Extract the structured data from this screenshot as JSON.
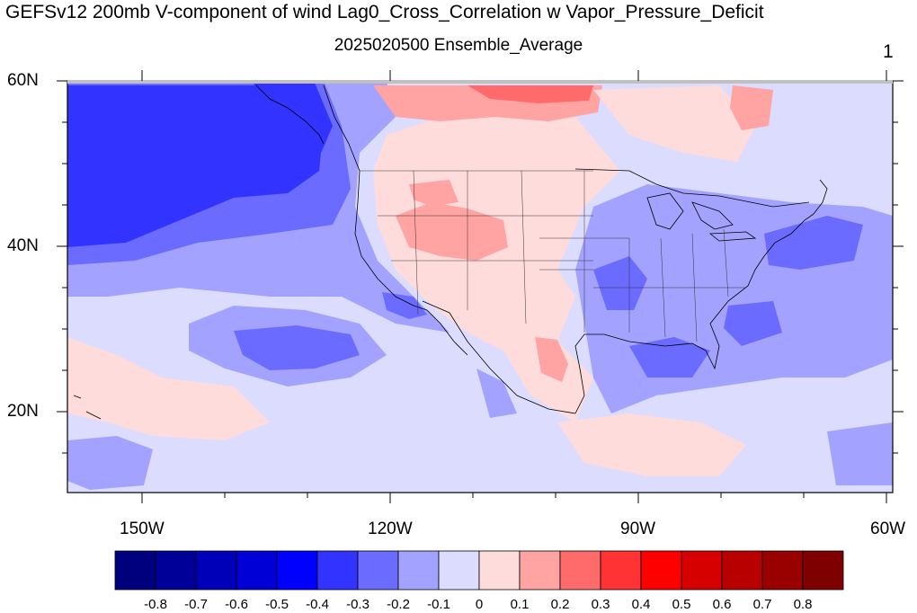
{
  "title": "GEFSv12 200mb V-component of wind Lag0_Cross_Correlation w Vapor_Pressure_Deficit",
  "subtitle": "2025020500 Ensemble_Average",
  "panel_number": "1",
  "lat_labels": [
    "60N",
    "40N",
    "20N"
  ],
  "lon_labels": [
    "150W",
    "120W",
    "90W",
    "60W"
  ],
  "colorbar": {
    "labels": [
      "-0.8",
      "-0.7",
      "-0.6",
      "-0.5",
      "-0.4",
      "-0.3",
      "-0.2",
      "-0.1",
      "0",
      "0.1",
      "0.2",
      "0.3",
      "0.4",
      "0.5",
      "0.6",
      "0.7",
      "0.8"
    ],
    "colors": [
      "#00007f",
      "#000099",
      "#0000b8",
      "#0000d6",
      "#0000ff",
      "#3333ff",
      "#6b6bff",
      "#a3a3ff",
      "#dcdcff",
      "#ffdcdc",
      "#ffa3a3",
      "#ff6b6b",
      "#ff3333",
      "#ff0000",
      "#d60000",
      "#b80000",
      "#990000",
      "#7f0000"
    ]
  },
  "map_extent": {
    "lon": [
      -160,
      -60
    ],
    "lat": [
      10,
      60
    ]
  }
}
